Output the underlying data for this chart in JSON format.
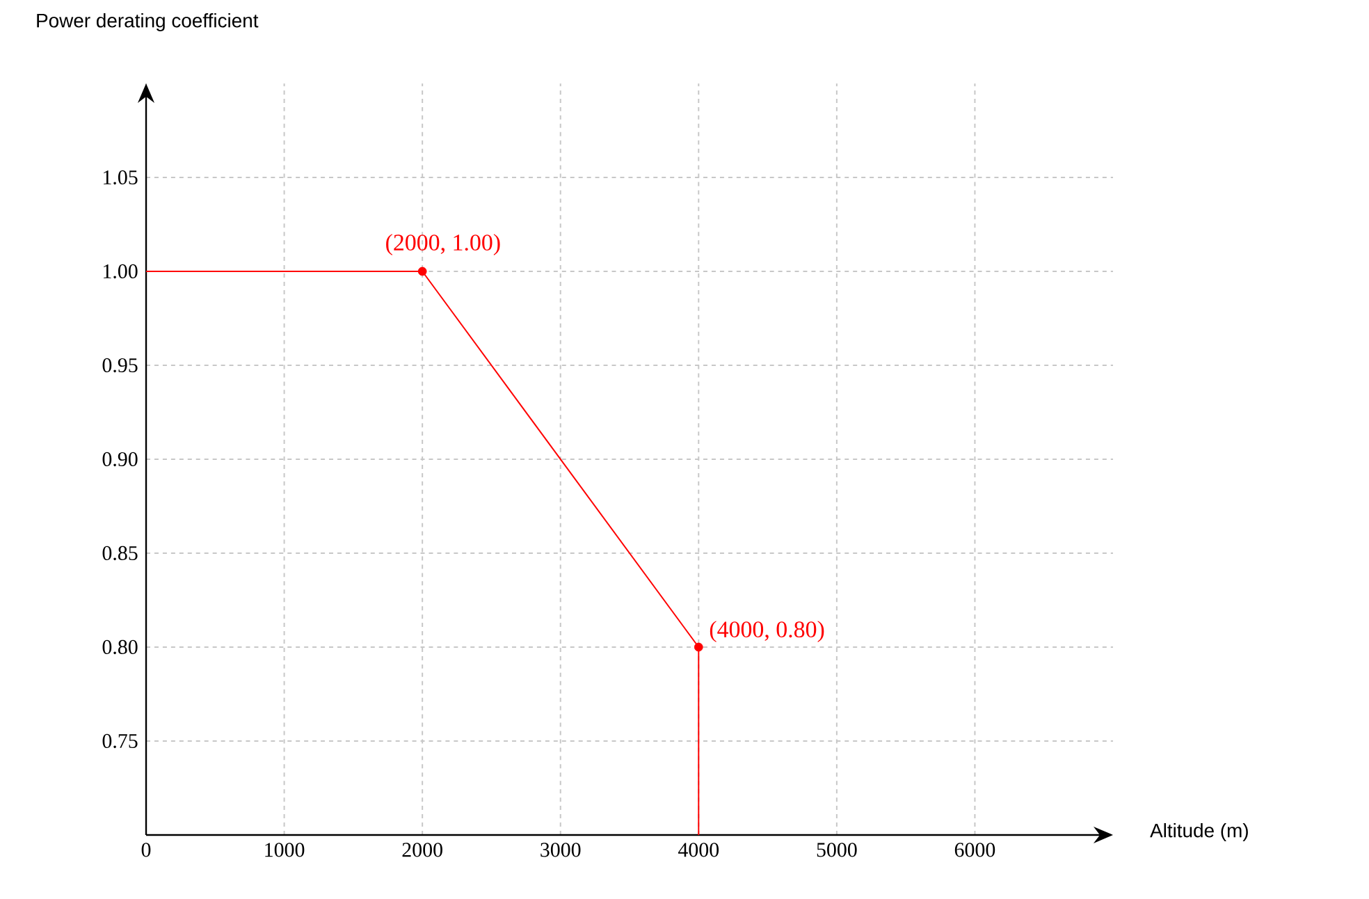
{
  "chart_data": {
    "type": "line",
    "xlabel": "Altitude (m)",
    "ylabel": "Power derating coefficient",
    "xlim": [
      0,
      7000
    ],
    "ylim": [
      0.7,
      1.1
    ],
    "xticks": [
      0,
      1000,
      2000,
      3000,
      4000,
      5000,
      6000
    ],
    "yticks": [
      0.75,
      {
        "value": 0.8,
        "label": "0.80"
      },
      0.85,
      {
        "value": 0.9,
        "label": "0.90"
      },
      0.95,
      {
        "value": 1.0,
        "label": "1.00"
      },
      1.05
    ],
    "grid": true,
    "series": [
      {
        "color": "#ff0000",
        "marker": "none",
        "x": [
          0,
          2000,
          4000,
          4000
        ],
        "values": [
          1.0,
          1.0,
          0.8,
          0.7
        ]
      },
      {
        "type": "scatter",
        "color": "#ff0000",
        "marker": "circle",
        "x": [
          2000,
          4000
        ],
        "values": [
          1.0,
          0.8
        ]
      }
    ],
    "annotations": [
      {
        "text": "(2000, 1.00)",
        "x": 2000,
        "y": 1.0
      },
      {
        "text": "(4000, 0.80)",
        "x": 4000,
        "y": 0.8
      }
    ]
  }
}
